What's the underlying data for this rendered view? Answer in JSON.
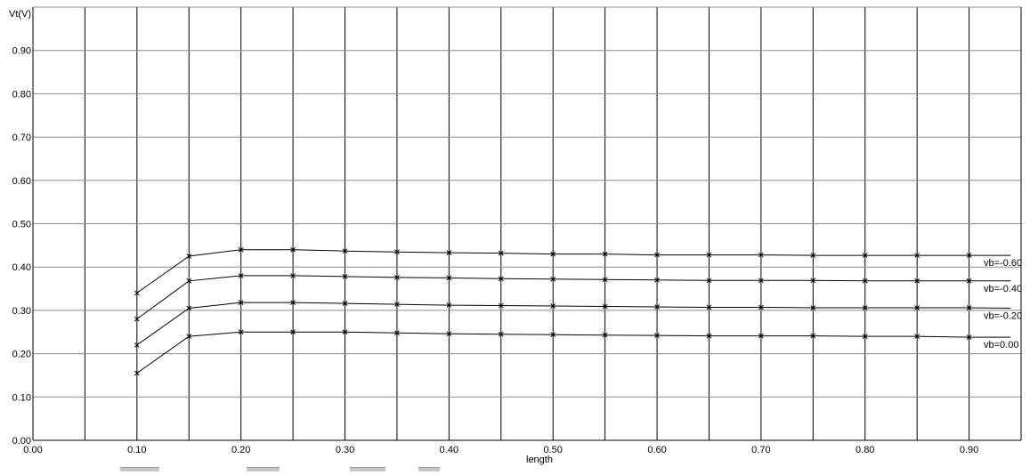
{
  "chart_data": {
    "type": "line",
    "title": "",
    "xlabel": "length",
    "ylabel": "Vt(V)",
    "xlim": [
      0.0,
      0.95
    ],
    "ylim": [
      0.0,
      1.0
    ],
    "xticks": [
      "0.00",
      "0.10",
      "0.20",
      "0.30",
      "0.40",
      "0.50",
      "0.60",
      "0.70",
      "0.80",
      "0.90"
    ],
    "xtick_values": [
      0.0,
      0.1,
      0.2,
      0.3,
      0.4,
      0.5,
      0.6,
      0.7,
      0.8,
      0.9
    ],
    "yticks": [
      "0.00",
      "0.10",
      "0.20",
      "0.30",
      "0.40",
      "0.50",
      "0.60",
      "0.70",
      "0.80",
      "0.90"
    ],
    "ytick_values": [
      0.0,
      0.1,
      0.2,
      0.3,
      0.4,
      0.5,
      0.6,
      0.7,
      0.8,
      0.9
    ],
    "grid": true,
    "legend": "series labels at right end of each line",
    "series": [
      {
        "name": "vb=-0.60",
        "x": [
          0.1,
          0.15,
          0.2,
          0.25,
          0.3,
          0.35,
          0.4,
          0.45,
          0.5,
          0.55,
          0.6,
          0.65,
          0.7,
          0.75,
          0.8,
          0.85,
          0.9,
          0.94
        ],
        "y": [
          0.34,
          0.425,
          0.44,
          0.44,
          0.437,
          0.435,
          0.433,
          0.432,
          0.43,
          0.43,
          0.428,
          0.428,
          0.428,
          0.427,
          0.427,
          0.427,
          0.427,
          0.427
        ]
      },
      {
        "name": "vb=-0.40",
        "x": [
          0.1,
          0.15,
          0.2,
          0.25,
          0.3,
          0.35,
          0.4,
          0.45,
          0.5,
          0.55,
          0.6,
          0.65,
          0.7,
          0.75,
          0.8,
          0.85,
          0.9,
          0.94
        ],
        "y": [
          0.28,
          0.368,
          0.38,
          0.38,
          0.378,
          0.376,
          0.375,
          0.373,
          0.372,
          0.371,
          0.37,
          0.369,
          0.369,
          0.369,
          0.368,
          0.368,
          0.368,
          0.368
        ]
      },
      {
        "name": "vb=-0.20",
        "x": [
          0.1,
          0.15,
          0.2,
          0.25,
          0.3,
          0.35,
          0.4,
          0.45,
          0.5,
          0.55,
          0.6,
          0.65,
          0.7,
          0.75,
          0.8,
          0.85,
          0.9,
          0.94
        ],
        "y": [
          0.22,
          0.305,
          0.318,
          0.318,
          0.316,
          0.314,
          0.312,
          0.311,
          0.31,
          0.309,
          0.308,
          0.307,
          0.307,
          0.306,
          0.306,
          0.306,
          0.306,
          0.305
        ]
      },
      {
        "name": "vb=0.00",
        "x": [
          0.1,
          0.15,
          0.2,
          0.25,
          0.3,
          0.35,
          0.4,
          0.45,
          0.5,
          0.55,
          0.6,
          0.65,
          0.7,
          0.75,
          0.8,
          0.85,
          0.9,
          0.94
        ],
        "y": [
          0.155,
          0.24,
          0.25,
          0.25,
          0.25,
          0.248,
          0.246,
          0.245,
          0.244,
          0.243,
          0.242,
          0.241,
          0.241,
          0.241,
          0.24,
          0.24,
          0.238,
          0.238
        ]
      }
    ]
  }
}
